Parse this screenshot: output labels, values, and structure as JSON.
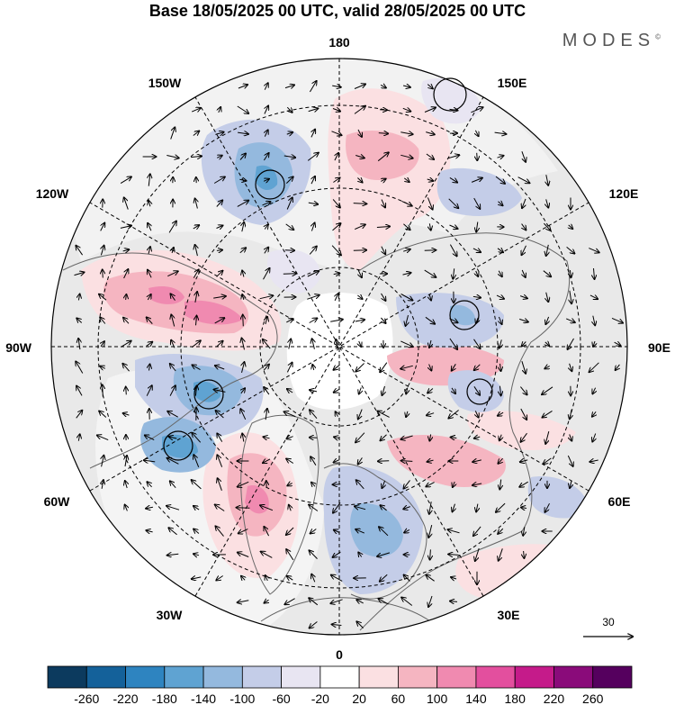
{
  "header": {
    "title": "Base 18/05/2025 00 UTC, valid 28/05/2025 00 UTC",
    "brand": "MODES",
    "brand_mark": "©"
  },
  "map": {
    "projection": "north-polar-stereographic",
    "meridian_labels": {
      "m180": "180",
      "m150e": "150E",
      "m120e": "120E",
      "m90e": "90E",
      "m60e": "60E",
      "m30e": "30E",
      "m0": "0",
      "m30w": "30W",
      "m60w": "60W",
      "m90w": "90W",
      "m120w": "120W",
      "m150w": "150W"
    },
    "vector_reference": "30",
    "colors": {
      "land_background": "#e9e9e9",
      "ocean": "#ffffff",
      "coast": "#666666",
      "grid": "#000000"
    }
  },
  "colorbar": {
    "ticks": [
      "-260",
      "-220",
      "-180",
      "-140",
      "-100",
      "-60",
      "-20",
      "20",
      "60",
      "100",
      "140",
      "180",
      "220",
      "260"
    ],
    "colors": [
      "#0c3a5e",
      "#14619a",
      "#2e84c0",
      "#5fa3d2",
      "#94b9de",
      "#c4cde8",
      "#e8e5f2",
      "#ffffff",
      "#fbe0e2",
      "#f5b5c1",
      "#f08ab0",
      "#e34f9e",
      "#c51b8a",
      "#8a0b7a",
      "#55005e"
    ]
  }
}
